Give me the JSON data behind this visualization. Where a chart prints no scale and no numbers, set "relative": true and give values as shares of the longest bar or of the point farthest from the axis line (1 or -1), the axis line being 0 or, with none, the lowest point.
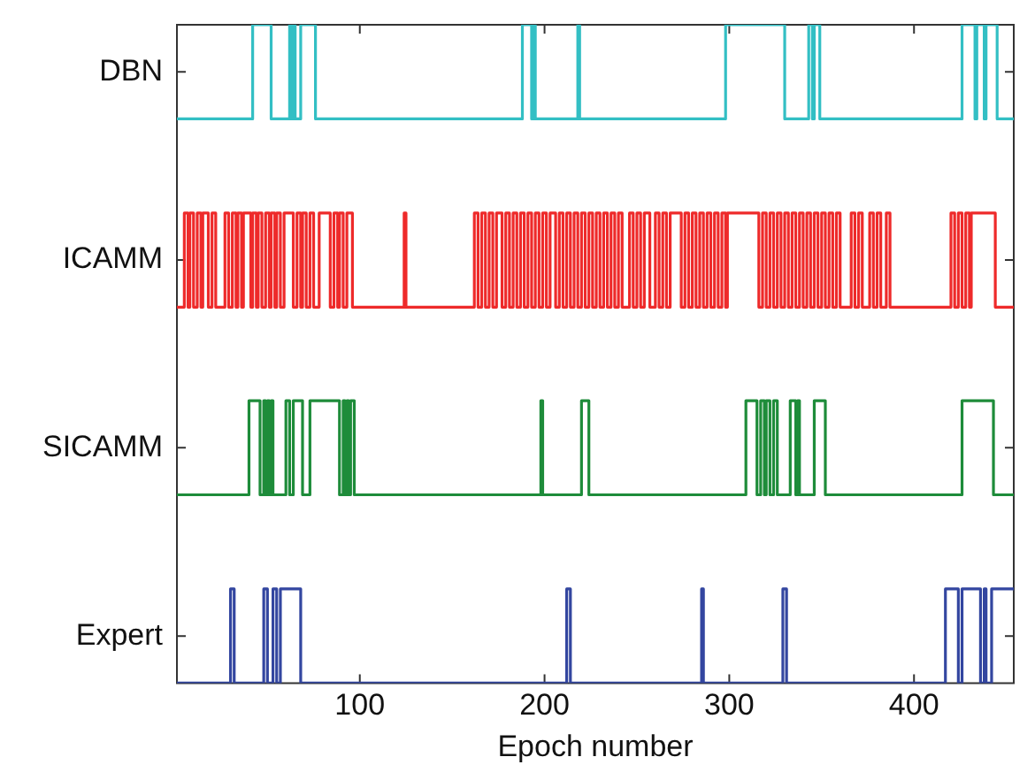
{
  "chart_data": {
    "type": "step",
    "xlabel": "Epoch number",
    "xlim": [
      1,
      454
    ],
    "xticks": [
      100,
      200,
      300,
      400
    ],
    "relative": true,
    "grid": false,
    "legend": false,
    "series": [
      {
        "name": "DBN",
        "color": "#33bfc4",
        "x": [
          1,
          42,
          52,
          62,
          63,
          64,
          65,
          68,
          76,
          188,
          193,
          194,
          195,
          218,
          219,
          298,
          330,
          343,
          345,
          346,
          349,
          426,
          433,
          434,
          438,
          439,
          445,
          454
        ],
        "values": [
          0.857,
          1,
          0.857,
          1,
          0.857,
          1,
          0.857,
          1,
          0.857,
          1,
          0.857,
          1,
          0.857,
          1,
          0.857,
          1,
          0.857,
          1,
          0.857,
          1,
          0.857,
          1,
          0.857,
          1,
          0.857,
          1,
          0.857,
          0.857
        ]
      },
      {
        "name": "ICAMM",
        "color": "#ee2a2a",
        "x": [
          1,
          5,
          7,
          8,
          10,
          12,
          14,
          15,
          18,
          20,
          22,
          27,
          29,
          31,
          33,
          34,
          36,
          37,
          41,
          42,
          44,
          45,
          47,
          49,
          51,
          52,
          54,
          55,
          57,
          59,
          64,
          66,
          68,
          69,
          71,
          73,
          75,
          78,
          84,
          86,
          88,
          89,
          91,
          93,
          96,
          124,
          125,
          162,
          164,
          166,
          168,
          170,
          172,
          174,
          177,
          179,
          181,
          183,
          185,
          187,
          189,
          191,
          193,
          195,
          197,
          199,
          201,
          203,
          206,
          208,
          210,
          212,
          214,
          216,
          218,
          220,
          222,
          224,
          226,
          228,
          230,
          232,
          234,
          236,
          238,
          240,
          242,
          246,
          248,
          250,
          252,
          254,
          257,
          260,
          262,
          264,
          266,
          268,
          274,
          276,
          278,
          280,
          282,
          284,
          286,
          288,
          290,
          292,
          294,
          296,
          298,
          299,
          316,
          318,
          320,
          322,
          324,
          326,
          328,
          330,
          332,
          334,
          336,
          338,
          340,
          342,
          344,
          346,
          348,
          350,
          352,
          354,
          356,
          358,
          360,
          366,
          368,
          370,
          372,
          376,
          378,
          380,
          382,
          385,
          387,
          420,
          422,
          424,
          426,
          428,
          430,
          431,
          444,
          454
        ],
        "values": [
          0.571,
          0.714,
          0.571,
          0.714,
          0.571,
          0.714,
          0.571,
          0.714,
          0.571,
          0.714,
          0.571,
          0.714,
          0.571,
          0.714,
          0.571,
          0.714,
          0.571,
          0.714,
          0.571,
          0.714,
          0.571,
          0.714,
          0.571,
          0.714,
          0.571,
          0.714,
          0.571,
          0.714,
          0.571,
          0.714,
          0.571,
          0.714,
          0.571,
          0.714,
          0.571,
          0.714,
          0.571,
          0.714,
          0.571,
          0.714,
          0.571,
          0.714,
          0.571,
          0.714,
          0.571,
          0.714,
          0.571,
          0.714,
          0.571,
          0.714,
          0.571,
          0.714,
          0.571,
          0.714,
          0.571,
          0.714,
          0.571,
          0.714,
          0.571,
          0.714,
          0.571,
          0.714,
          0.571,
          0.714,
          0.571,
          0.714,
          0.571,
          0.714,
          0.571,
          0.714,
          0.571,
          0.714,
          0.571,
          0.714,
          0.571,
          0.714,
          0.571,
          0.714,
          0.571,
          0.714,
          0.571,
          0.714,
          0.571,
          0.714,
          0.571,
          0.714,
          0.571,
          0.714,
          0.571,
          0.714,
          0.571,
          0.714,
          0.571,
          0.714,
          0.571,
          0.714,
          0.571,
          0.714,
          0.571,
          0.714,
          0.571,
          0.714,
          0.571,
          0.714,
          0.571,
          0.714,
          0.571,
          0.714,
          0.571,
          0.714,
          0.571,
          0.714,
          0.571,
          0.714,
          0.571,
          0.714,
          0.571,
          0.714,
          0.571,
          0.714,
          0.571,
          0.714,
          0.571,
          0.714,
          0.571,
          0.714,
          0.571,
          0.714,
          0.571,
          0.714,
          0.571,
          0.714,
          0.571,
          0.714,
          0.571,
          0.714,
          0.571,
          0.714,
          0.571,
          0.714,
          0.571,
          0.714,
          0.571,
          0.714,
          0.571,
          0.714,
          0.571,
          0.714,
          0.571,
          0.714,
          0.571,
          0.714,
          0.571,
          0.571
        ]
      },
      {
        "name": "SICAMM",
        "color": "#1e8c3a",
        "x": [
          1,
          40,
          46,
          48,
          49,
          50,
          51,
          52,
          53,
          60,
          62,
          64,
          69,
          73,
          89,
          91,
          92,
          93,
          94,
          95,
          97,
          198,
          199,
          220,
          224,
          309,
          315,
          317,
          319,
          320,
          322,
          324,
          326,
          333,
          336,
          337,
          338,
          346,
          352,
          426,
          443,
          454
        ],
        "values": [
          0.286,
          0.429,
          0.286,
          0.429,
          0.286,
          0.429,
          0.286,
          0.429,
          0.286,
          0.429,
          0.286,
          0.429,
          0.286,
          0.429,
          0.286,
          0.429,
          0.286,
          0.429,
          0.286,
          0.429,
          0.286,
          0.429,
          0.286,
          0.429,
          0.286,
          0.429,
          0.286,
          0.429,
          0.286,
          0.429,
          0.286,
          0.429,
          0.286,
          0.429,
          0.286,
          0.429,
          0.286,
          0.429,
          0.286,
          0.429,
          0.286,
          0.286
        ]
      },
      {
        "name": "Expert",
        "color": "#3346a0",
        "x": [
          1,
          30,
          32,
          48,
          50,
          53,
          55,
          57,
          68,
          212,
          214,
          285,
          286,
          329,
          331,
          417,
          424,
          426,
          436,
          438,
          439,
          442,
          454
        ],
        "values": [
          0,
          0.143,
          0,
          0.143,
          0,
          0.143,
          0,
          0.143,
          0,
          0.143,
          0,
          0.143,
          0,
          0.143,
          0,
          0.143,
          0,
          0.143,
          0,
          0.143,
          0,
          0.143,
          0.143
        ]
      }
    ]
  }
}
